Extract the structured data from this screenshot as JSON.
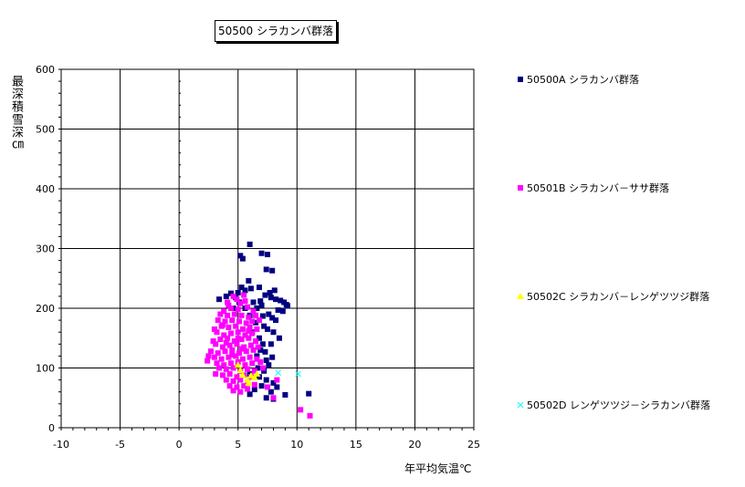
{
  "chart_data": {
    "type": "scatter",
    "title": "50500 シラカンバ群落",
    "xlabel": "年平均気温℃",
    "ylabel": "最深積雪深㎝",
    "xlim": [
      -10,
      25
    ],
    "ylim": [
      0,
      600
    ],
    "x_ticks": [
      "-10",
      "-5",
      "0",
      "5",
      "10",
      "15",
      "20",
      "25"
    ],
    "y_ticks": [
      "0",
      "100",
      "200",
      "300",
      "400",
      "500",
      "600"
    ],
    "grid": true,
    "legend_position": "right",
    "series": [
      {
        "name": "50500A シラカンバ群落",
        "color": "#000080",
        "marker": "square",
        "points": [
          [
            6.0,
            307
          ],
          [
            5.2,
            288
          ],
          [
            5.4,
            283
          ],
          [
            7.0,
            292
          ],
          [
            7.5,
            290
          ],
          [
            7.4,
            265
          ],
          [
            7.9,
            263
          ],
          [
            6.8,
            235
          ],
          [
            7.3,
            222
          ],
          [
            7.7,
            226
          ],
          [
            7.8,
            218
          ],
          [
            8.1,
            230
          ],
          [
            8.2,
            215
          ],
          [
            8.6,
            213
          ],
          [
            8.9,
            210
          ],
          [
            9.1,
            206
          ],
          [
            9.2,
            204
          ],
          [
            8.8,
            195
          ],
          [
            8.4,
            197
          ],
          [
            7.6,
            190
          ],
          [
            7.1,
            187
          ],
          [
            6.6,
            200
          ],
          [
            6.9,
            212
          ],
          [
            5.3,
            235
          ],
          [
            5.6,
            230
          ],
          [
            6.1,
            233
          ],
          [
            4.4,
            225
          ],
          [
            4.0,
            220
          ],
          [
            3.4,
            215
          ],
          [
            4.8,
            218
          ],
          [
            5.1,
            210
          ],
          [
            6.3,
            210
          ],
          [
            7.0,
            205
          ],
          [
            7.9,
            184
          ],
          [
            8.2,
            180
          ],
          [
            7.2,
            170
          ],
          [
            6.5,
            176
          ],
          [
            7.5,
            165
          ],
          [
            8.0,
            160
          ],
          [
            6.8,
            150
          ],
          [
            7.1,
            140
          ],
          [
            6.9,
            130
          ],
          [
            7.3,
            127
          ],
          [
            6.6,
            120
          ],
          [
            7.4,
            113
          ],
          [
            7.9,
            118
          ],
          [
            7.6,
            105
          ],
          [
            6.7,
            100
          ],
          [
            7.2,
            95
          ],
          [
            6.0,
            90
          ],
          [
            6.8,
            85
          ],
          [
            7.4,
            80
          ],
          [
            8.0,
            75
          ],
          [
            7.0,
            70
          ],
          [
            8.3,
            68
          ],
          [
            7.8,
            60
          ],
          [
            6.4,
            64
          ],
          [
            9.0,
            55
          ],
          [
            8.0,
            48
          ],
          [
            7.4,
            50
          ],
          [
            6.0,
            56
          ],
          [
            11.0,
            57
          ],
          [
            5.6,
            200
          ],
          [
            6.0,
            188
          ],
          [
            4.6,
            200
          ],
          [
            8.5,
            150
          ],
          [
            7.8,
            140
          ],
          [
            5.9,
            246
          ],
          [
            6.2,
            160
          ],
          [
            5.0,
            226
          ]
        ]
      },
      {
        "name": "50501B シラカンバ－ササ群落",
        "color": "#FF00FF",
        "marker": "square",
        "points": [
          [
            4.6,
            220
          ],
          [
            4.9,
            215
          ],
          [
            4.2,
            205
          ],
          [
            5.2,
            208
          ],
          [
            5.6,
            212
          ],
          [
            4.4,
            200
          ],
          [
            3.8,
            195
          ],
          [
            5.0,
            198
          ],
          [
            5.8,
            202
          ],
          [
            6.3,
            195
          ],
          [
            3.5,
            190
          ],
          [
            4.1,
            188
          ],
          [
            4.7,
            190
          ],
          [
            5.3,
            188
          ],
          [
            5.9,
            185
          ],
          [
            6.5,
            188
          ],
          [
            3.3,
            180
          ],
          [
            3.9,
            178
          ],
          [
            4.5,
            180
          ],
          [
            5.1,
            178
          ],
          [
            5.7,
            175
          ],
          [
            6.2,
            178
          ],
          [
            6.8,
            180
          ],
          [
            3.0,
            165
          ],
          [
            3.6,
            170
          ],
          [
            4.2,
            168
          ],
          [
            4.8,
            170
          ],
          [
            5.4,
            165
          ],
          [
            6.0,
            168
          ],
          [
            6.6,
            165
          ],
          [
            3.2,
            160
          ],
          [
            3.8,
            155
          ],
          [
            4.4,
            158
          ],
          [
            5.0,
            160
          ],
          [
            5.6,
            155
          ],
          [
            6.2,
            158
          ],
          [
            2.9,
            145
          ],
          [
            3.5,
            148
          ],
          [
            4.1,
            150
          ],
          [
            4.7,
            145
          ],
          [
            5.3,
            148
          ],
          [
            5.9,
            150
          ],
          [
            6.5,
            145
          ],
          [
            3.1,
            140
          ],
          [
            3.7,
            135
          ],
          [
            4.3,
            138
          ],
          [
            4.9,
            140
          ],
          [
            5.5,
            135
          ],
          [
            6.1,
            138
          ],
          [
            6.7,
            135
          ],
          [
            2.7,
            128
          ],
          [
            3.3,
            125
          ],
          [
            3.9,
            128
          ],
          [
            4.5,
            130
          ],
          [
            5.1,
            125
          ],
          [
            5.7,
            128
          ],
          [
            6.3,
            130
          ],
          [
            2.5,
            120
          ],
          [
            3.0,
            118
          ],
          [
            3.6,
            115
          ],
          [
            4.2,
            118
          ],
          [
            4.8,
            120
          ],
          [
            5.4,
            115
          ],
          [
            6.0,
            118
          ],
          [
            6.6,
            115
          ],
          [
            2.4,
            112
          ],
          [
            3.2,
            108
          ],
          [
            3.8,
            105
          ],
          [
            4.4,
            108
          ],
          [
            5.0,
            110
          ],
          [
            5.6,
            105
          ],
          [
            6.2,
            108
          ],
          [
            3.4,
            100
          ],
          [
            4.0,
            98
          ],
          [
            4.6,
            100
          ],
          [
            5.2,
            95
          ],
          [
            5.8,
            98
          ],
          [
            6.4,
            95
          ],
          [
            3.1,
            90
          ],
          [
            3.7,
            88
          ],
          [
            4.3,
            90
          ],
          [
            4.9,
            85
          ],
          [
            5.5,
            88
          ],
          [
            6.1,
            85
          ],
          [
            4.0,
            80
          ],
          [
            4.6,
            78
          ],
          [
            5.2,
            80
          ],
          [
            5.8,
            75
          ],
          [
            4.3,
            70
          ],
          [
            4.9,
            68
          ],
          [
            5.5,
            70
          ],
          [
            4.6,
            62
          ],
          [
            5.2,
            60
          ],
          [
            5.8,
            65
          ],
          [
            6.4,
            72
          ],
          [
            7.5,
            68
          ],
          [
            8.0,
            50
          ],
          [
            8.3,
            80
          ],
          [
            10.3,
            30
          ],
          [
            11.1,
            20
          ],
          [
            6.9,
            110
          ],
          [
            7.1,
            100
          ],
          [
            4.1,
            210
          ],
          [
            5.5,
            222
          ],
          [
            3.7,
            172
          ],
          [
            5.0,
            150
          ],
          [
            4.5,
            122
          ],
          [
            5.3,
            132
          ],
          [
            4.0,
            142
          ],
          [
            5.9,
            162
          ]
        ]
      },
      {
        "name": "50502C シラカンバ－レンゲツツジ群落",
        "color": "#FFFF00",
        "marker": "triangle",
        "points": [
          [
            5.0,
            105
          ],
          [
            5.4,
            88
          ],
          [
            5.8,
            80
          ],
          [
            6.1,
            87
          ],
          [
            6.4,
            84
          ],
          [
            5.9,
            75
          ],
          [
            6.6,
            90
          ],
          [
            5.2,
            96
          ]
        ]
      },
      {
        "name": "50502D レンゲツツジ－シラカンバ群落",
        "color": "#00FFFF",
        "marker": "x",
        "points": [
          [
            10.1,
            90
          ],
          [
            8.4,
            92
          ]
        ]
      }
    ]
  }
}
